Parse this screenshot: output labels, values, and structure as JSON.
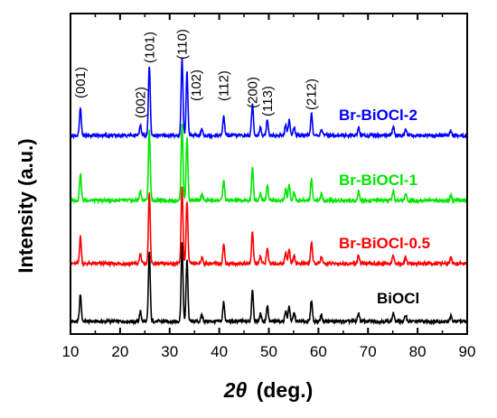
{
  "chart_data": {
    "type": "line",
    "title": "",
    "xlabel_symbol": "2θ",
    "xlabel_unit": "(deg.)",
    "ylabel": "Intensity (a.u.)",
    "xlim": [
      10,
      90
    ],
    "xticks": [
      10,
      20,
      30,
      40,
      50,
      60,
      70,
      80,
      90
    ],
    "yticks_shown": false,
    "grid": false,
    "legend": "inline labels right of each curve",
    "peak_labels": [
      {
        "hkl": "(001)",
        "x": 12.0
      },
      {
        "hkl": "(002)",
        "x": 24.1
      },
      {
        "hkl": "(101)",
        "x": 25.9
      },
      {
        "hkl": "(110)",
        "x": 32.5
      },
      {
        "hkl": "(102)",
        "x": 33.5
      },
      {
        "hkl": "(112)",
        "x": 40.9
      },
      {
        "hkl": "(200)",
        "x": 46.7
      },
      {
        "hkl": "(113)",
        "x": 49.7
      },
      {
        "hkl": "(212)",
        "x": 58.6
      }
    ],
    "peaks": [
      {
        "x": 12.0,
        "h": 0.25
      },
      {
        "x": 24.1,
        "h": 0.09
      },
      {
        "x": 25.9,
        "h": 0.65
      },
      {
        "x": 32.5,
        "h": 0.72
      },
      {
        "x": 33.5,
        "h": 0.58
      },
      {
        "x": 36.5,
        "h": 0.06
      },
      {
        "x": 40.9,
        "h": 0.18
      },
      {
        "x": 46.7,
        "h": 0.3
      },
      {
        "x": 48.3,
        "h": 0.07
      },
      {
        "x": 49.7,
        "h": 0.15
      },
      {
        "x": 53.4,
        "h": 0.1
      },
      {
        "x": 54.1,
        "h": 0.14
      },
      {
        "x": 55.1,
        "h": 0.08
      },
      {
        "x": 58.6,
        "h": 0.2
      },
      {
        "x": 60.6,
        "h": 0.06
      },
      {
        "x": 68.1,
        "h": 0.08
      },
      {
        "x": 75.1,
        "h": 0.08
      },
      {
        "x": 77.6,
        "h": 0.06
      },
      {
        "x": 86.7,
        "h": 0.05
      }
    ],
    "series": [
      {
        "name": "BiOCl",
        "color": "#000000",
        "baseline": 0.0,
        "scale": 1.0
      },
      {
        "name": "Br-BiOCl-0.5",
        "color": "#ff0000",
        "baseline": 1.0,
        "scale": 1.0
      },
      {
        "name": "Br-BiOCl-1",
        "color": "#00e600",
        "baseline": 2.0,
        "scale": 1.0
      },
      {
        "name": "Br-BiOCl-2",
        "color": "#0000ff",
        "baseline": 3.0,
        "scale": 1.0
      }
    ]
  }
}
